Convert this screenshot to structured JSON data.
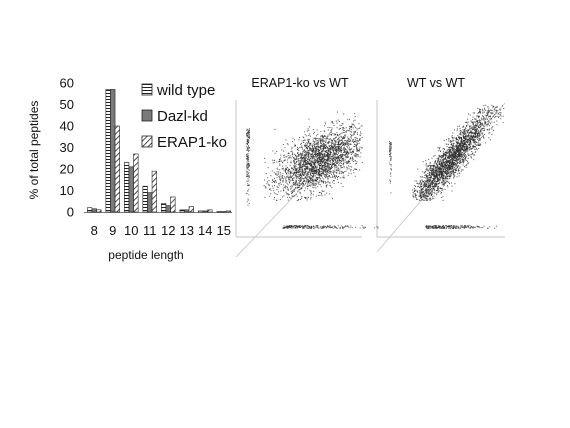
{
  "chart_data": [
    {
      "type": "bar",
      "title": "",
      "xlabel": "peptide length",
      "ylabel": "% of total peptides",
      "categories": [
        "8",
        "9",
        "10",
        "11",
        "12",
        "13",
        "14",
        "15"
      ],
      "ylim": [
        0,
        60
      ],
      "yticks": [
        "0",
        "10",
        "20",
        "30",
        "40",
        "50",
        "60"
      ],
      "grid": false,
      "legend": "top-right",
      "series": [
        {
          "name": "wild type",
          "pattern": "horizontal-stripes",
          "values": [
            2,
            57,
            23,
            12,
            4,
            1,
            0.5,
            0.2
          ]
        },
        {
          "name": "Dazl-kd",
          "pattern": "solid-gray",
          "values": [
            1.5,
            57,
            21,
            9,
            3,
            1,
            0.5,
            0.2
          ]
        },
        {
          "name": "ERAP1-ko",
          "pattern": "diagonal-stripes",
          "values": [
            1,
            40,
            27,
            19,
            7,
            2.5,
            1,
            0.5
          ]
        }
      ]
    },
    {
      "type": "scatter",
      "title": "ERAP1-ko vs WT",
      "xlabel": "",
      "ylabel": "",
      "legend": "none",
      "identity_line": true
    },
    {
      "type": "scatter",
      "title": "WT vs WT",
      "xlabel": "",
      "ylabel": "",
      "legend": "none",
      "identity_line": true
    }
  ],
  "colors": {
    "bar_outline": "#222222",
    "solid_gray": "#7a7a7a",
    "points": "#2b2b2b",
    "diagonal": "#c8c8c8",
    "axis": "#999999"
  }
}
